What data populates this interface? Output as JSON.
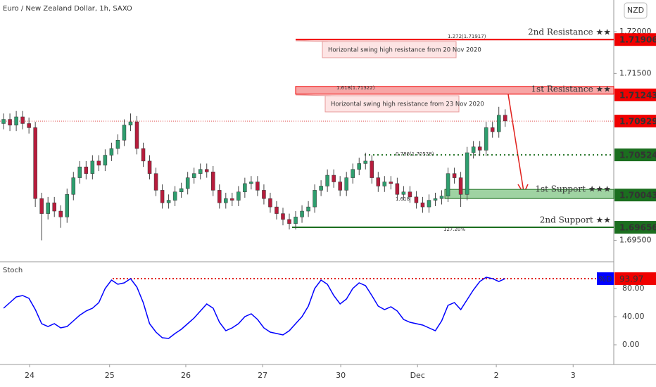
{
  "chart_data": [
    {
      "type": "candlestick",
      "title": "Euro / New Zealand Dollar, 1h, SAXO",
      "currency": "NZD",
      "up_color": "#2e9e6e",
      "down_color": "#b71c3c",
      "categories": [
        null,
        null,
        null,
        null,
        null,
        null,
        null,
        null,
        null,
        null,
        null,
        null,
        null,
        null,
        null,
        null,
        null,
        null,
        null,
        null,
        null,
        null,
        null,
        null,
        null,
        null,
        null,
        null,
        null,
        null,
        null,
        null,
        null,
        null,
        null,
        null,
        null,
        null,
        null,
        null,
        null,
        null,
        null,
        null,
        null,
        null,
        null,
        null,
        null,
        null,
        null,
        null,
        null,
        null,
        null,
        null,
        null,
        null,
        null,
        null,
        null,
        null,
        null,
        null,
        null,
        null,
        null,
        null,
        null,
        null,
        null,
        null,
        null,
        null,
        null,
        null,
        null,
        null,
        null,
        null
      ],
      "open": [
        1.709,
        1.7095,
        1.7088,
        1.7098,
        1.709,
        1.7085,
        1.7,
        1.6982,
        1.6995,
        1.6985,
        1.6978,
        1.7005,
        1.7025,
        1.7038,
        1.703,
        1.7045,
        1.704,
        1.7052,
        1.706,
        1.707,
        1.7088,
        1.7092,
        1.706,
        1.7045,
        1.703,
        1.701,
        1.6995,
        1.6998,
        1.7008,
        1.7012,
        1.7025,
        1.703,
        1.7035,
        1.7032,
        1.701,
        1.6995,
        1.7,
        1.6998,
        1.7008,
        1.7018,
        1.702,
        1.701,
        1.7,
        1.699,
        1.6982,
        1.6975,
        1.697,
        1.6978,
        1.6985,
        1.699,
        1.701,
        1.7015,
        1.7028,
        1.702,
        1.701,
        1.7025,
        1.7035,
        1.7042,
        1.7045,
        1.7025,
        1.7015,
        1.702,
        1.7018,
        1.7005,
        1.7008,
        1.7002,
        1.6995,
        1.699,
        1.6998,
        1.7,
        1.7003,
        1.703,
        1.7025,
        1.7005,
        1.7055,
        1.7062,
        1.7058,
        1.7085,
        1.708,
        1.71
      ],
      "high": [
        1.7102,
        1.7102,
        1.7105,
        1.7105,
        1.7097,
        1.7092,
        1.7007,
        1.7002,
        1.7002,
        1.6992,
        1.7012,
        1.7032,
        1.7045,
        1.7045,
        1.7052,
        1.7052,
        1.7059,
        1.7067,
        1.7077,
        1.7095,
        1.7102,
        1.7099,
        1.7067,
        1.7052,
        1.7037,
        1.7017,
        1.7005,
        1.7015,
        1.7019,
        1.7032,
        1.7037,
        1.7042,
        1.7042,
        1.7039,
        1.7017,
        1.7007,
        1.7007,
        1.7015,
        1.7025,
        1.7027,
        1.7027,
        1.7017,
        1.7007,
        1.6997,
        1.6989,
        1.6982,
        1.6985,
        1.6992,
        1.6997,
        1.7017,
        1.7022,
        1.7035,
        1.7035,
        1.7027,
        1.7032,
        1.7042,
        1.7049,
        1.7055,
        1.7052,
        1.7032,
        1.7027,
        1.7027,
        1.7025,
        1.7015,
        1.7015,
        1.7009,
        1.7002,
        1.7005,
        1.7007,
        1.701,
        1.7037,
        1.7037,
        1.7032,
        1.7062,
        1.7069,
        1.7069,
        1.7092,
        1.7092,
        1.711,
        1.7107
      ],
      "low": [
        1.7083,
        1.7081,
        1.7081,
        1.7083,
        1.7078,
        1.699,
        1.695,
        1.6975,
        1.6978,
        1.6965,
        1.6971,
        1.6998,
        1.7018,
        1.7023,
        1.7023,
        1.7033,
        1.7033,
        1.7045,
        1.7053,
        1.7063,
        1.7081,
        1.7053,
        1.7038,
        1.7023,
        1.7003,
        1.6988,
        1.6988,
        1.6991,
        1.7001,
        1.7005,
        1.7018,
        1.7023,
        1.7025,
        1.7003,
        1.6988,
        1.6988,
        1.6991,
        1.6991,
        1.7001,
        1.7011,
        1.7003,
        1.6993,
        1.6983,
        1.6975,
        1.6968,
        1.6963,
        1.6963,
        1.6971,
        1.6978,
        1.6983,
        1.7003,
        1.7008,
        1.7013,
        1.7003,
        1.7003,
        1.7018,
        1.7028,
        1.7035,
        1.7018,
        1.7008,
        1.7008,
        1.7011,
        1.6998,
        1.6998,
        1.6995,
        1.6988,
        1.6983,
        1.6983,
        1.6991,
        1.6993,
        1.6996,
        1.7018,
        1.699,
        1.6998,
        1.7048,
        1.7051,
        1.7051,
        1.7073,
        1.7073,
        1.7086
      ],
      "close": [
        1.7095,
        1.7088,
        1.7098,
        1.709,
        1.7085,
        1.7,
        1.6982,
        1.6995,
        1.6985,
        1.6978,
        1.7005,
        1.7025,
        1.7038,
        1.703,
        1.7045,
        1.704,
        1.7052,
        1.706,
        1.707,
        1.7088,
        1.7092,
        1.706,
        1.7045,
        1.703,
        1.701,
        1.6995,
        1.6998,
        1.7008,
        1.7012,
        1.7025,
        1.703,
        1.7035,
        1.7032,
        1.701,
        1.6995,
        1.7,
        1.6998,
        1.7008,
        1.7018,
        1.702,
        1.701,
        1.7,
        1.699,
        1.6982,
        1.6975,
        1.697,
        1.6978,
        1.6985,
        1.699,
        1.701,
        1.7015,
        1.7028,
        1.702,
        1.701,
        1.7025,
        1.7035,
        1.7042,
        1.7045,
        1.7025,
        1.7015,
        1.702,
        1.7018,
        1.7005,
        1.7008,
        1.7002,
        1.6995,
        1.699,
        1.6998,
        1.7,
        1.7003,
        1.703,
        1.7025,
        1.7005,
        1.7055,
        1.7062,
        1.7058,
        1.7085,
        1.708,
        1.71,
        1.7093
      ],
      "xlim": [
        -0.56,
        96.1
      ],
      "xticks": [
        {
          "value": 4.1,
          "label": "24"
        },
        {
          "value": 16.7,
          "label": "25"
        },
        {
          "value": 28.7,
          "label": "26"
        },
        {
          "value": 40.8,
          "label": "27"
        },
        {
          "value": 53.1,
          "label": "30"
        },
        {
          "value": 65.2,
          "label": "Dec"
        },
        {
          "value": 77.6,
          "label": "2"
        },
        {
          "value": 89.7,
          "label": "3"
        }
      ],
      "ylim": [
        1.6926,
        1.7238
      ],
      "yticks": [
        {
          "value": 1.695,
          "label": "1.69500"
        },
        {
          "value": 1.715,
          "label": "1.71500"
        },
        {
          "value": 1.72,
          "label": "1.72000"
        }
      ],
      "last_price": 1.70929,
      "levels": [
        {
          "label": "2nd Resistance ★★",
          "value": 1.71906,
          "color": "#f00000",
          "kind": "line"
        },
        {
          "label": "1st Resistance ★★",
          "value": 1.71243,
          "color": "#f00000",
          "kind": "zone"
        },
        {
          "value": 1.70524,
          "color": "#1b6e1f",
          "kind": "dotted"
        },
        {
          "label": "1st Support ★★★",
          "value": 1.70043,
          "color": "#1b6e1f",
          "kind": "zone"
        },
        {
          "label": "2nd Support ★★",
          "value": 1.69656,
          "color": "#1b6e1f",
          "kind": "line"
        }
      ],
      "callouts": [
        "Horizontal swing high resistance from 20 Nov 2020",
        "Horizontal swing high resistance from 23 Nov 2020"
      ],
      "fib_labels": [
        "1.272(1.71917)",
        "1.618(1.71322)",
        "0.786(1.70528)",
        "1.618",
        "127.20%"
      ]
    },
    {
      "type": "line",
      "title": "Stoch",
      "series": [
        {
          "name": "%D",
          "color": "#0000ff",
          "values": [
            52,
            60,
            68,
            70,
            66,
            50,
            30,
            26,
            30,
            24,
            26,
            34,
            42,
            48,
            52,
            60,
            80,
            92,
            86,
            88,
            94,
            82,
            60,
            30,
            18,
            10,
            9,
            16,
            22,
            30,
            38,
            48,
            58,
            52,
            32,
            20,
            24,
            30,
            40,
            44,
            36,
            24,
            18,
            16,
            14,
            20,
            30,
            40,
            55,
            80,
            92,
            86,
            70,
            58,
            65,
            80,
            88,
            84,
            70,
            55,
            50,
            54,
            48,
            36,
            32,
            30,
            28,
            24,
            20,
            34,
            56,
            60,
            50,
            64,
            78,
            90,
            96,
            94,
            90,
            93.97
          ]
        }
      ],
      "ylim": [
        -25,
        115
      ],
      "yticks": [
        {
          "value": 0,
          "label": "0.00"
        },
        {
          "value": 40,
          "label": "40.00"
        },
        {
          "value": 80,
          "label": "80.00"
        }
      ]
    }
  ]
}
